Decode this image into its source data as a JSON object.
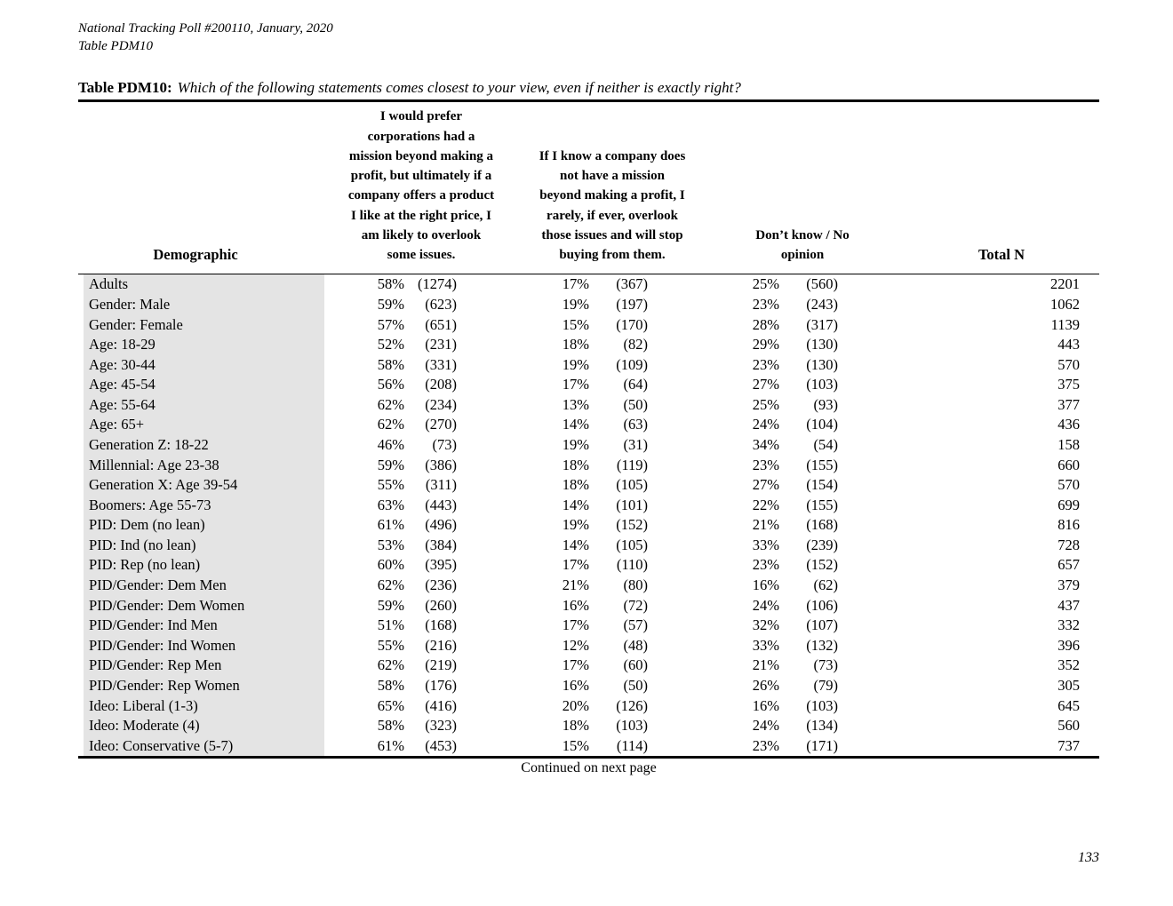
{
  "page": {
    "meta_line1": "National Tracking Poll #200110, January, 2020",
    "meta_line2": "Table PDM10",
    "footer_continued": "Continued on next page",
    "page_number": "133"
  },
  "table": {
    "title_label": "Table PDM10:",
    "title_question": "Which of the following statements comes closest to your view, even if neither is exactly right?",
    "headers": {
      "demographic": "Demographic",
      "col1": "I would prefer\ncorporations had a\nmission beyond making a\nprofit, but ultimately if a\ncompany offers a product\nI like at the right price, I\nam likely to overlook\nsome issues.",
      "col2": "If I know a company does\nnot have a mission\nbeyond making a profit, I\nrarely, if ever, overlook\nthose issues and will stop\nbuying from them.",
      "col3": "Don’t know / No\nopinion",
      "total": "Total N"
    },
    "rows": [
      {
        "demographic": "Adults",
        "col1_pct": "58%",
        "col1_n": "(1274)",
        "col2_pct": "17%",
        "col2_n": "(367)",
        "col3_pct": "25%",
        "col3_n": "(560)",
        "total_n": "2201"
      },
      {
        "demographic": "Gender: Male",
        "col1_pct": "59%",
        "col1_n": "(623)",
        "col2_pct": "19%",
        "col2_n": "(197)",
        "col3_pct": "23%",
        "col3_n": "(243)",
        "total_n": "1062"
      },
      {
        "demographic": "Gender: Female",
        "col1_pct": "57%",
        "col1_n": "(651)",
        "col2_pct": "15%",
        "col2_n": "(170)",
        "col3_pct": "28%",
        "col3_n": "(317)",
        "total_n": "1139"
      },
      {
        "demographic": "Age: 18-29",
        "col1_pct": "52%",
        "col1_n": "(231)",
        "col2_pct": "18%",
        "col2_n": "(82)",
        "col3_pct": "29%",
        "col3_n": "(130)",
        "total_n": "443"
      },
      {
        "demographic": "Age: 30-44",
        "col1_pct": "58%",
        "col1_n": "(331)",
        "col2_pct": "19%",
        "col2_n": "(109)",
        "col3_pct": "23%",
        "col3_n": "(130)",
        "total_n": "570"
      },
      {
        "demographic": "Age: 45-54",
        "col1_pct": "56%",
        "col1_n": "(208)",
        "col2_pct": "17%",
        "col2_n": "(64)",
        "col3_pct": "27%",
        "col3_n": "(103)",
        "total_n": "375"
      },
      {
        "demographic": "Age: 55-64",
        "col1_pct": "62%",
        "col1_n": "(234)",
        "col2_pct": "13%",
        "col2_n": "(50)",
        "col3_pct": "25%",
        "col3_n": "(93)",
        "total_n": "377"
      },
      {
        "demographic": "Age: 65+",
        "col1_pct": "62%",
        "col1_n": "(270)",
        "col2_pct": "14%",
        "col2_n": "(63)",
        "col3_pct": "24%",
        "col3_n": "(104)",
        "total_n": "436"
      },
      {
        "demographic": "Generation Z: 18-22",
        "col1_pct": "46%",
        "col1_n": "(73)",
        "col2_pct": "19%",
        "col2_n": "(31)",
        "col3_pct": "34%",
        "col3_n": "(54)",
        "total_n": "158"
      },
      {
        "demographic": "Millennial: Age 23-38",
        "col1_pct": "59%",
        "col1_n": "(386)",
        "col2_pct": "18%",
        "col2_n": "(119)",
        "col3_pct": "23%",
        "col3_n": "(155)",
        "total_n": "660"
      },
      {
        "demographic": "Generation X: Age 39-54",
        "col1_pct": "55%",
        "col1_n": "(311)",
        "col2_pct": "18%",
        "col2_n": "(105)",
        "col3_pct": "27%",
        "col3_n": "(154)",
        "total_n": "570"
      },
      {
        "demographic": "Boomers: Age 55-73",
        "col1_pct": "63%",
        "col1_n": "(443)",
        "col2_pct": "14%",
        "col2_n": "(101)",
        "col3_pct": "22%",
        "col3_n": "(155)",
        "total_n": "699"
      },
      {
        "demographic": "PID: Dem (no lean)",
        "col1_pct": "61%",
        "col1_n": "(496)",
        "col2_pct": "19%",
        "col2_n": "(152)",
        "col3_pct": "21%",
        "col3_n": "(168)",
        "total_n": "816"
      },
      {
        "demographic": "PID: Ind (no lean)",
        "col1_pct": "53%",
        "col1_n": "(384)",
        "col2_pct": "14%",
        "col2_n": "(105)",
        "col3_pct": "33%",
        "col3_n": "(239)",
        "total_n": "728"
      },
      {
        "demographic": "PID: Rep (no lean)",
        "col1_pct": "60%",
        "col1_n": "(395)",
        "col2_pct": "17%",
        "col2_n": "(110)",
        "col3_pct": "23%",
        "col3_n": "(152)",
        "total_n": "657"
      },
      {
        "demographic": "PID/Gender: Dem Men",
        "col1_pct": "62%",
        "col1_n": "(236)",
        "col2_pct": "21%",
        "col2_n": "(80)",
        "col3_pct": "16%",
        "col3_n": "(62)",
        "total_n": "379"
      },
      {
        "demographic": "PID/Gender: Dem Women",
        "col1_pct": "59%",
        "col1_n": "(260)",
        "col2_pct": "16%",
        "col2_n": "(72)",
        "col3_pct": "24%",
        "col3_n": "(106)",
        "total_n": "437"
      },
      {
        "demographic": "PID/Gender: Ind Men",
        "col1_pct": "51%",
        "col1_n": "(168)",
        "col2_pct": "17%",
        "col2_n": "(57)",
        "col3_pct": "32%",
        "col3_n": "(107)",
        "total_n": "332"
      },
      {
        "demographic": "PID/Gender: Ind Women",
        "col1_pct": "55%",
        "col1_n": "(216)",
        "col2_pct": "12%",
        "col2_n": "(48)",
        "col3_pct": "33%",
        "col3_n": "(132)",
        "total_n": "396"
      },
      {
        "demographic": "PID/Gender: Rep Men",
        "col1_pct": "62%",
        "col1_n": "(219)",
        "col2_pct": "17%",
        "col2_n": "(60)",
        "col3_pct": "21%",
        "col3_n": "(73)",
        "total_n": "352"
      },
      {
        "demographic": "PID/Gender: Rep Women",
        "col1_pct": "58%",
        "col1_n": "(176)",
        "col2_pct": "16%",
        "col2_n": "(50)",
        "col3_pct": "26%",
        "col3_n": "(79)",
        "total_n": "305"
      },
      {
        "demographic": "Ideo: Liberal (1-3)",
        "col1_pct": "65%",
        "col1_n": "(416)",
        "col2_pct": "20%",
        "col2_n": "(126)",
        "col3_pct": "16%",
        "col3_n": "(103)",
        "total_n": "645"
      },
      {
        "demographic": "Ideo: Moderate (4)",
        "col1_pct": "58%",
        "col1_n": "(323)",
        "col2_pct": "18%",
        "col2_n": "(103)",
        "col3_pct": "24%",
        "col3_n": "(134)",
        "total_n": "560"
      },
      {
        "demographic": "Ideo: Conservative (5-7)",
        "col1_pct": "61%",
        "col1_n": "(453)",
        "col2_pct": "15%",
        "col2_n": "(114)",
        "col3_pct": "23%",
        "col3_n": "(171)",
        "total_n": "737"
      }
    ]
  }
}
